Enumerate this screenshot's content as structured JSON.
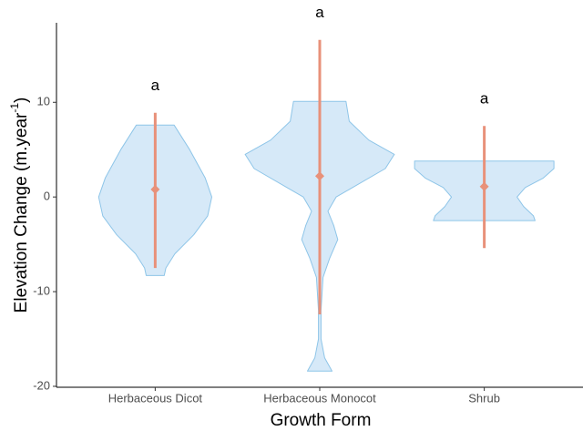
{
  "chart_data": {
    "type": "violin",
    "x_label": "Growth Form",
    "y_label": {
      "text": "Elevation Change (m.year",
      "sup": "-1",
      "end": ")"
    },
    "categories": [
      "Herbaceous Dicot",
      "Herbaceous Monocot",
      "Shrub"
    ],
    "letters": [
      "a",
      "a",
      "a"
    ],
    "means": [
      0.8,
      2.2,
      1.1
    ],
    "lower": [
      -7.5,
      -12.4,
      -5.4
    ],
    "upper": [
      8.9,
      16.6,
      7.5
    ],
    "violins": [
      {
        "y": [
          7.6,
          5,
          2,
          0,
          -2,
          -4,
          -6,
          -7.5,
          -8.3
        ],
        "width": [
          0.23,
          0.42,
          0.61,
          0.69,
          0.64,
          0.47,
          0.24,
          0.13,
          0.11
        ]
      },
      {
        "y": [
          10.1,
          8,
          6,
          4.5,
          3,
          1,
          0,
          -1.5,
          -3,
          -4.5,
          -6.5,
          -8.5,
          -12,
          -15,
          -17,
          -18.4
        ],
        "width": [
          0.32,
          0.36,
          0.6,
          0.91,
          0.8,
          0.4,
          0.2,
          0.1,
          0.17,
          0.22,
          0.12,
          0.04,
          0.015,
          0.015,
          0.06,
          0.15
        ]
      },
      {
        "y": [
          3.8,
          3,
          2,
          1,
          0,
          -1,
          -2,
          -2.5
        ],
        "width": [
          0.85,
          0.85,
          0.72,
          0.5,
          0.4,
          0.48,
          0.6,
          0.62
        ]
      }
    ],
    "violin_fill": "#d6e9f8",
    "violin_stroke": "#8ec5e8",
    "error_color": "#e8917a",
    "ylim": [
      -20.1,
      18.4
    ],
    "yticks": [
      -20,
      -10,
      0,
      10
    ]
  }
}
